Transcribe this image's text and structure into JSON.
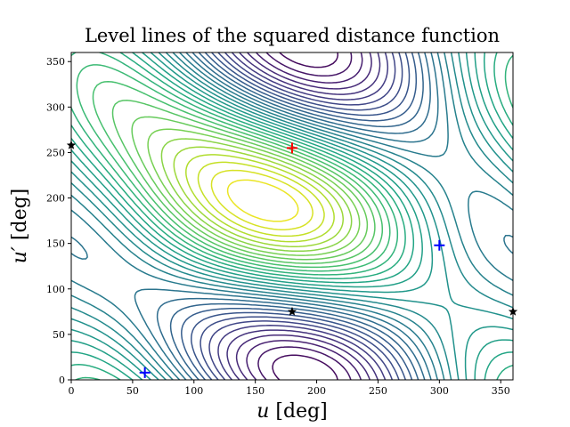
{
  "chart_data": {
    "type": "contour",
    "title": "Level lines of the squared distance function",
    "xlabel_var": "u",
    "xlabel_unit": " [deg]",
    "ylabel_var": "u′",
    "ylabel_unit": " [deg]",
    "xlim": [
      0,
      360
    ],
    "ylim": [
      0,
      360
    ],
    "xticks": [
      0,
      50,
      100,
      150,
      200,
      250,
      300,
      350
    ],
    "yticks": [
      0,
      50,
      100,
      150,
      200,
      250,
      300,
      350
    ],
    "colormap": "viridis",
    "grid": false,
    "markers": {
      "maximum": [
        {
          "x": 180,
          "y": 255
        }
      ],
      "minima": [
        {
          "x": 60,
          "y": 8
        },
        {
          "x": 300,
          "y": 148
        }
      ],
      "saddles": [
        {
          "x": 0,
          "y": 258
        },
        {
          "x": 180,
          "y": 75
        },
        {
          "x": 360,
          "y": 75
        }
      ]
    },
    "colors": {
      "maximum": "#ff0000",
      "minima": "#0000ff",
      "saddles": "#000000"
    }
  }
}
